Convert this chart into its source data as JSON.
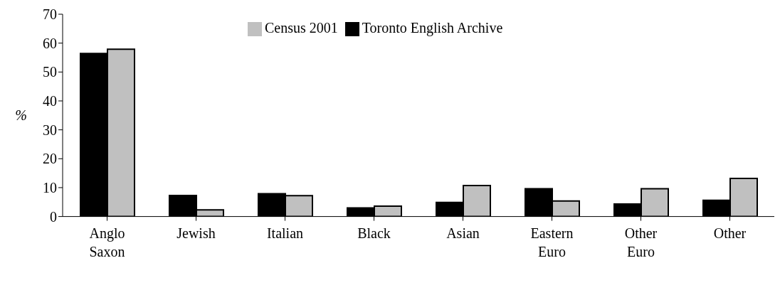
{
  "chart_data": {
    "type": "bar",
    "ylabel": "%",
    "categories": [
      "Anglo\nSaxon",
      "Jewish",
      "Italian",
      "Black",
      "Asian",
      "Eastern\nEuro",
      "Other\nEuro",
      "Other"
    ],
    "series": [
      {
        "name": "Toronto English Archive",
        "color": "#000000",
        "values": [
          56.4,
          7.3,
          7.9,
          3.0,
          4.9,
          9.6,
          4.3,
          5.6
        ]
      },
      {
        "name": "Census 2001",
        "color": "#c0c0c0",
        "values": [
          57.9,
          2.3,
          7.2,
          3.6,
          10.7,
          5.4,
          9.6,
          13.2
        ]
      }
    ],
    "ylim": [
      0,
      70
    ],
    "yticks": [
      0,
      10,
      20,
      30,
      40,
      50,
      60,
      70
    ],
    "grid": false,
    "legend": "top"
  }
}
